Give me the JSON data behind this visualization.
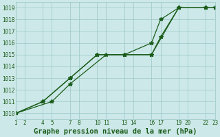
{
  "title": "Graphe pression niveau de la mer (hPa)",
  "bg_color": "#cde8e8",
  "grid_color": "#9ac8c8",
  "line_color": "#1a5c1a",
  "xlim": [
    1,
    23
  ],
  "ylim": [
    1009.5,
    1019.5
  ],
  "xtick_positions": [
    1,
    2,
    4,
    5,
    7,
    8,
    10,
    11,
    13,
    14,
    16,
    17,
    19,
    20,
    22,
    23
  ],
  "xtick_labels": [
    "1",
    "2",
    "4",
    "5",
    "7",
    "8",
    "10",
    "11",
    "13",
    "14",
    "16",
    "17",
    "19",
    "20",
    "22",
    "23"
  ],
  "yticks": [
    1010,
    1011,
    1012,
    1013,
    1014,
    1015,
    1016,
    1017,
    1018,
    1019
  ],
  "series": [
    {
      "x": [
        1,
        4,
        7,
        10,
        13,
        16,
        19,
        22,
        23
      ],
      "y": [
        1010.0,
        1011.0,
        1013.0,
        1015.0,
        1015.0,
        1015.0,
        1019.0,
        1019.0,
        1019.0
      ]
    },
    {
      "x": [
        1,
        4,
        7,
        10,
        13,
        16,
        17,
        19,
        22,
        23
      ],
      "y": [
        1010.0,
        1011.0,
        1013.0,
        1015.0,
        1015.0,
        1016.0,
        1018.0,
        1019.0,
        1019.0,
        1019.0
      ]
    },
    {
      "x": [
        1,
        5,
        7,
        11,
        13,
        16,
        17,
        19,
        22,
        23
      ],
      "y": [
        1010.0,
        1011.0,
        1012.5,
        1015.0,
        1015.0,
        1015.0,
        1016.5,
        1019.0,
        1019.0,
        1019.0
      ]
    }
  ],
  "marker": "*",
  "marker_size": 4,
  "linewidth": 0.9,
  "title_fontsize": 7.5,
  "tick_fontsize": 5.5,
  "title_color": "#1a5c1a"
}
